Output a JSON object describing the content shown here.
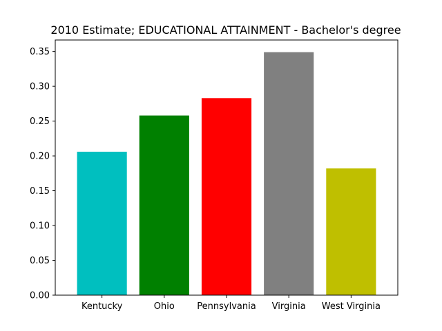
{
  "chart_data": {
    "type": "bar",
    "title": "2010 Estimate; EDUCATIONAL ATTAINMENT - Bachelor's degree",
    "xlabel": "",
    "ylabel": "",
    "categories": [
      "Kentucky",
      "Ohio",
      "Pennsylvania",
      "Virginia",
      "West Virginia"
    ],
    "values": [
      0.206,
      0.258,
      0.283,
      0.349,
      0.182
    ],
    "colors": [
      "#00bfbf",
      "#008000",
      "#ff0000",
      "#808080",
      "#bfbf00"
    ],
    "ylim": [
      0,
      0.3665
    ],
    "yticks": [
      "0.00",
      "0.05",
      "0.10",
      "0.15",
      "0.20",
      "0.25",
      "0.30",
      "0.35"
    ],
    "grid": false,
    "legend": "none"
  }
}
